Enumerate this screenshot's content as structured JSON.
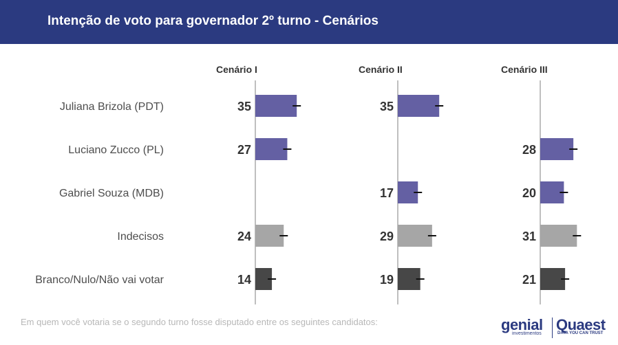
{
  "header": {
    "title": "Intenção de voto para governador 2º turno - Cenários"
  },
  "footer": {
    "note": "Em quem você votaria se o segundo turno fosse disputado entre os seguintes candidatos:",
    "logo_genial": "genial",
    "logo_genial_sub": "investimentos",
    "logo_quaest": "Quaest",
    "logo_quaest_sub": "DATA YOU CAN TRUST"
  },
  "colors": {
    "header_bg": "#2b3a80",
    "candidate_bar": "#6460a3",
    "indecisos_bar": "#a6a6a6",
    "branco_bar": "#474747",
    "axis": "#bfbfbf"
  },
  "chart_data": {
    "type": "bar",
    "orientation": "horizontal",
    "categories": [
      "Juliana Brizola (PDT)",
      "Luciano Zucco (PL)",
      "Gabriel Souza (MDB)",
      "Indecisos",
      "Branco/Nulo/Não vai votar"
    ],
    "category_colors": [
      "#6460a3",
      "#6460a3",
      "#6460a3",
      "#a6a6a6",
      "#474747"
    ],
    "series": [
      {
        "name": "Cenário I",
        "values": [
          35,
          27,
          null,
          24,
          14
        ]
      },
      {
        "name": "Cenário II",
        "values": [
          35,
          null,
          17,
          29,
          19
        ]
      },
      {
        "name": "Cenário III",
        "values": [
          null,
          28,
          20,
          31,
          21
        ]
      }
    ],
    "error_bars": true,
    "data_labels": true,
    "grid": false
  }
}
